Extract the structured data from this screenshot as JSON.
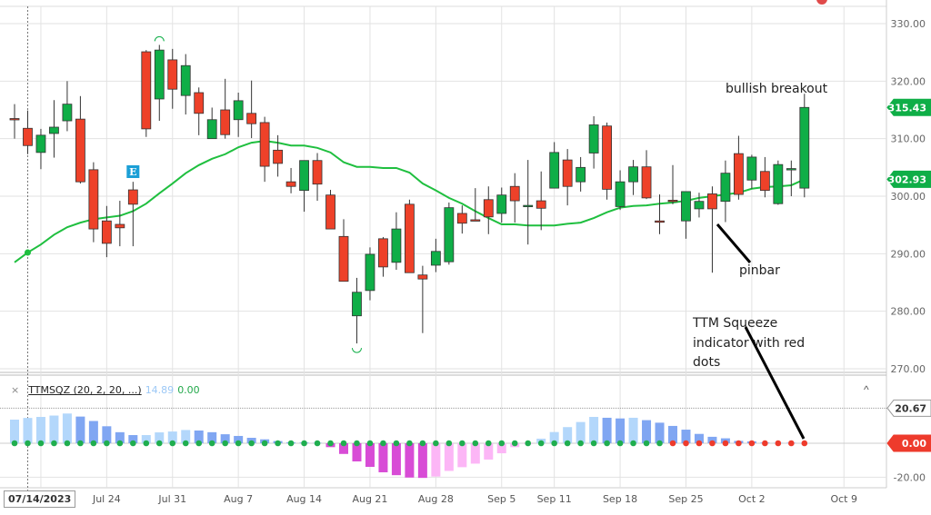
{
  "colors": {
    "up": "#0fae47",
    "down": "#ee4129",
    "sma": "#1fbf3f",
    "hist_pos_rising": "#b3d7fb",
    "hist_pos_falling": "#80a6f2",
    "hist_neg_falling": "#d84cd6",
    "hist_neg_rising": "#fcb6f6",
    "dot_off": "#1fae4f",
    "dot_on": "#ee3b2c",
    "earnings": "#1b9fd6"
  },
  "chart_data": [
    {
      "type": "candlestick",
      "ylim": [
        268,
        332
      ],
      "yticks": [
        "330.00",
        "320.00",
        "310.00",
        "300.00",
        "290.00",
        "280.00",
        "270.00"
      ],
      "ytick_values": [
        330,
        320,
        310,
        300,
        290,
        280,
        270
      ],
      "grid": true,
      "xticks": [
        {
          "index": 7,
          "label": "Jul 24"
        },
        {
          "index": 12,
          "label": "Jul 31"
        },
        {
          "index": 17,
          "label": "Aug 7"
        },
        {
          "index": 22,
          "label": "Aug 14"
        },
        {
          "index": 27,
          "label": "Aug 21"
        },
        {
          "index": 32,
          "label": "Aug 28"
        },
        {
          "index": 37,
          "label": "Sep 5"
        },
        {
          "index": 41,
          "label": "Sep 11"
        },
        {
          "index": 46,
          "label": "Sep 18"
        },
        {
          "index": 51,
          "label": "Sep 25"
        },
        {
          "index": 56,
          "label": "Oct 2"
        },
        {
          "index": 63,
          "label": "Oct 9"
        }
      ],
      "ohlc": [
        [
          313.5,
          316,
          310,
          313.4
        ],
        [
          311.8,
          314.9,
          307.3,
          308.8
        ],
        [
          307.6,
          311.7,
          304.7,
          310.6
        ],
        [
          310.9,
          316.7,
          306.7,
          312
        ],
        [
          313.1,
          320,
          311.3,
          316
        ],
        [
          313.4,
          317.4,
          302.2,
          302.5
        ],
        [
          304.6,
          305.9,
          292,
          294.3
        ],
        [
          295.7,
          298.3,
          289.4,
          291.8
        ],
        [
          295.1,
          299.2,
          291.3,
          294.5
        ],
        [
          301.1,
          302.5,
          291.3,
          298.6
        ],
        [
          325.1,
          325.4,
          310.3,
          311.7
        ],
        [
          316.9,
          326.3,
          313.1,
          325.4
        ],
        [
          323.7,
          325.6,
          315.2,
          318.6
        ],
        [
          317.5,
          324.7,
          314.2,
          322.7
        ],
        [
          318,
          318.9,
          310.6,
          314.4
        ],
        [
          310,
          315.4,
          310,
          313.3
        ],
        [
          315,
          320.4,
          310,
          310.7
        ],
        [
          313.3,
          318,
          310.3,
          316.6
        ],
        [
          314.4,
          320.1,
          310.1,
          312.6
        ],
        [
          312.8,
          313.8,
          302.5,
          305.2
        ],
        [
          308,
          310.6,
          303.4,
          305.7
        ],
        [
          302.5,
          304.9,
          300.5,
          301.7
        ],
        [
          301,
          306.2,
          297.3,
          306.2
        ],
        [
          306.2,
          307.5,
          299.2,
          302.1
        ],
        [
          300.2,
          301.1,
          294.3,
          294.3
        ],
        [
          293,
          296,
          285.2,
          285.2
        ],
        [
          279.2,
          285.8,
          274.4,
          283.3
        ],
        [
          283.6,
          291.1,
          281.9,
          289.9
        ],
        [
          292.6,
          292.9,
          286,
          287.7
        ],
        [
          288.5,
          297.2,
          287.2,
          294.3
        ],
        [
          298.6,
          299.4,
          286.7,
          286.7
        ],
        [
          286.3,
          287.9,
          276.2,
          285.6
        ],
        [
          288,
          292.6,
          286.8,
          290.4
        ],
        [
          288.6,
          298.9,
          288.1,
          298
        ],
        [
          297,
          298.4,
          293.5,
          295.3
        ],
        [
          295.9,
          301.4,
          295.9,
          295.8
        ],
        [
          299.4,
          301.7,
          293.4,
          296.4
        ],
        [
          297,
          301.5,
          295.4,
          300.2
        ],
        [
          301.7,
          304,
          295.4,
          299.2
        ],
        [
          298.2,
          306.3,
          291.6,
          298.4
        ],
        [
          299.2,
          304.3,
          294.1,
          297.9
        ],
        [
          301.4,
          309.4,
          301.4,
          307.6
        ],
        [
          306.3,
          308.2,
          298.4,
          301.7
        ],
        [
          302.5,
          306.8,
          300.8,
          305
        ],
        [
          307.5,
          313.9,
          304.8,
          312.4
        ],
        [
          312.2,
          312.8,
          299.4,
          301.2
        ],
        [
          298.2,
          304.5,
          297.6,
          302.5
        ],
        [
          302.5,
          306.3,
          300.2,
          305.1
        ],
        [
          305.1,
          308,
          299.5,
          299.7
        ],
        [
          295.7,
          300.3,
          293.4,
          295.6
        ],
        [
          299.3,
          305.4,
          298.6,
          299.2
        ],
        [
          295.7,
          300.8,
          292.6,
          300.8
        ],
        [
          297.8,
          300.6,
          296.3,
          299.1
        ],
        [
          300.4,
          301.7,
          286.7,
          297.8
        ],
        [
          299.1,
          306.2,
          295.5,
          304
        ],
        [
          307.4,
          310.5,
          299.4,
          300.3
        ],
        [
          302.8,
          307.2,
          301.3,
          306.8
        ],
        [
          304.3,
          306.8,
          299.8,
          301
        ],
        [
          298.7,
          306.2,
          298.5,
          305.5
        ],
        [
          304.7,
          306.2,
          300,
          304.8
        ],
        [
          301.4,
          317.8,
          299.8,
          315.43
        ]
      ],
      "sma": [
        288.5,
        290.2,
        291.6,
        293.3,
        294.6,
        295.4,
        296,
        296.3,
        296.6,
        297.4,
        298.7,
        300.5,
        302.2,
        304,
        305.4,
        306.5,
        307.3,
        308.5,
        309.3,
        309.6,
        309.3,
        308.8,
        308.8,
        308.4,
        307.6,
        305.9,
        305.1,
        305.1,
        304.9,
        304.9,
        304.1,
        302.2,
        301,
        299.7,
        298.7,
        297.4,
        296.2,
        295.1,
        295.1,
        294.9,
        294.9,
        294.9,
        295.2,
        295.4,
        296.2,
        297.2,
        298,
        298.3,
        298.4,
        298.7,
        298.9,
        299.2,
        299.7,
        300,
        300.3,
        300.6,
        301.3,
        301.6,
        301.7,
        301.9,
        302.93
      ],
      "last_price_label": "315.43",
      "sma_label": "302.93",
      "earnings_marker": {
        "index": 9,
        "label": "E"
      },
      "high_marker_index": 11,
      "low_marker_index": 26
    },
    {
      "type": "bar",
      "title": "TTMSQZ (20, 2, 20, ...)",
      "ylim": [
        -22,
        22
      ],
      "yticks": [
        "20.67",
        "0.00",
        "-20.00"
      ],
      "values": [
        13.9,
        14.89,
        15.5,
        16.3,
        17.5,
        15.7,
        13.1,
        10,
        6.5,
        4.8,
        4.8,
        6.4,
        6.9,
        7.8,
        7.5,
        6.5,
        5.3,
        4.3,
        3.2,
        2.3,
        1.3,
        0.5,
        0.4,
        0.2,
        -2.3,
        -6.3,
        -10.7,
        -13.9,
        -17.1,
        -18.8,
        -20.2,
        -20.4,
        -19.6,
        -16.3,
        -14.1,
        -12,
        -9.6,
        -5.9,
        -2.3,
        -0.4,
        2.7,
        6.6,
        9.5,
        12.5,
        15.5,
        15,
        14.6,
        15,
        13.6,
        12.1,
        10.2,
        8,
        5.5,
        3.8,
        2.9,
        1.4,
        1.1,
        0.4,
        0.4,
        0.3,
        0.3
      ],
      "squeeze_on_from_index": 50,
      "header_value_1": "14.89",
      "header_value_2": "0.00",
      "current_value_label": "0.00",
      "level_label": "20.67"
    }
  ],
  "crosshair_date": "07/14/2023",
  "crosshair_index": 1,
  "annotations": {
    "breakout": "bullish breakout",
    "pinbar": "pinbar",
    "ttm_line1": "TTM Squeeze",
    "ttm_line2": "indicator with red",
    "ttm_line3": "dots"
  },
  "icons": {
    "close": "×",
    "collapse": "^"
  }
}
